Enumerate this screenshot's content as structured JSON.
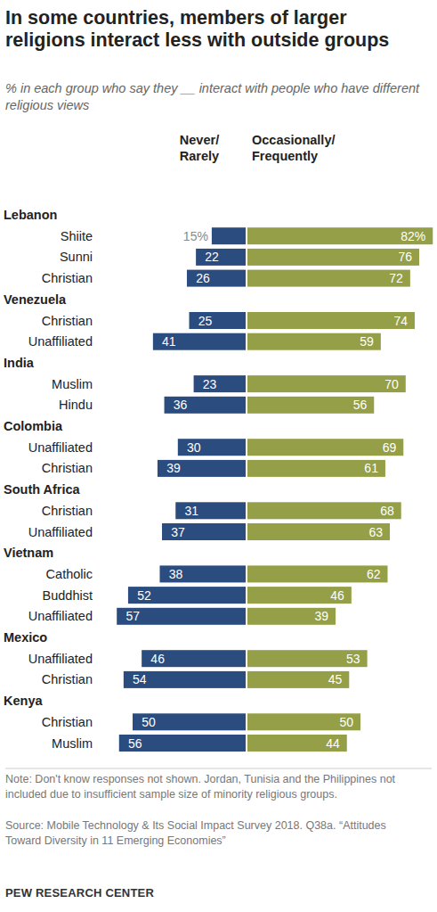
{
  "chart_data": {
    "type": "bar",
    "orientation": "horizontal",
    "title": "In some countries, members of larger religions interact less with outside groups",
    "subtitle": "% in each group who say they __ interact with people who have different religious views",
    "groups": [
      "Lebanon",
      "Lebanon",
      "Lebanon",
      "Venezuela",
      "Venezuela",
      "India",
      "India",
      "Colombia",
      "Colombia",
      "South Africa",
      "South Africa",
      "Vietnam",
      "Vietnam",
      "Vietnam",
      "Mexico",
      "Mexico",
      "Kenya",
      "Kenya"
    ],
    "categories": [
      "Shiite",
      "Sunni",
      "Christian",
      "Christian",
      "Unaffiliated",
      "Muslim",
      "Hindu",
      "Unaffiliated",
      "Christian",
      "Christian",
      "Unaffiliated",
      "Catholic",
      "Buddhist",
      "Unaffiliated",
      "Unaffiliated",
      "Christian",
      "Christian",
      "Muslim"
    ],
    "series": [
      {
        "name": "Never/ Rarely",
        "color": "#2b4c7e",
        "values": [
          15,
          22,
          26,
          25,
          41,
          23,
          36,
          30,
          39,
          31,
          37,
          38,
          52,
          57,
          46,
          54,
          50,
          56
        ],
        "value_labels": [
          "15%",
          "22",
          "26",
          "25",
          "41",
          "23",
          "36",
          "30",
          "39",
          "31",
          "37",
          "38",
          "52",
          "57",
          "46",
          "54",
          "50",
          "56"
        ]
      },
      {
        "name": "Occasionally/ Frequently",
        "color": "#949f47",
        "values": [
          82,
          76,
          72,
          74,
          59,
          70,
          56,
          69,
          61,
          68,
          63,
          62,
          46,
          39,
          53,
          45,
          50,
          44
        ],
        "value_labels": [
          "82%",
          "76",
          "72",
          "74",
          "59",
          "70",
          "56",
          "69",
          "61",
          "68",
          "63",
          "62",
          "46",
          "39",
          "53",
          "45",
          "50",
          "44"
        ]
      }
    ],
    "xlim": [
      0,
      85
    ],
    "tick_labels": false,
    "grid": false,
    "data_labels": true,
    "note": "Note: Don't know responses not shown. Jordan, Tunisia and the Philippines not included due to insufficient sample size of minority religious groups.",
    "source": "Source: Mobile Technology & Its Social Impact Survey 2018. Q38a. “Attitudes Toward Diversity in 11 Emerging Economies”",
    "credit": "PEW RESEARCH CENTER"
  }
}
